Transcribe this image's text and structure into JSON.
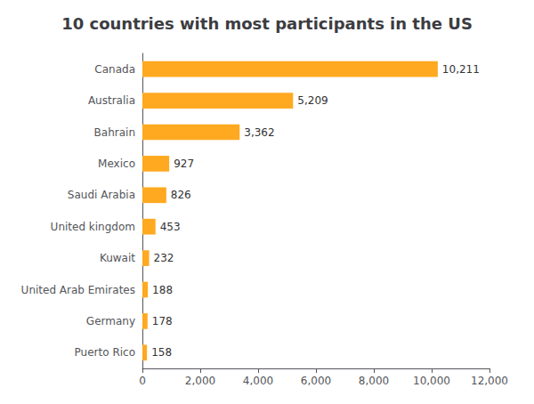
{
  "chart_data": {
    "type": "bar",
    "orientation": "horizontal",
    "title": "10 countries with most participants in the US",
    "categories": [
      "Canada",
      "Australia",
      "Bahrain",
      "Mexico",
      "Saudi Arabia",
      "United kingdom",
      "Kuwait",
      "United Arab Emirates",
      "Germany",
      "Puerto Rico"
    ],
    "values": [
      10211,
      5209,
      3362,
      927,
      826,
      453,
      232,
      188,
      178,
      158
    ],
    "value_labels": [
      "10,211",
      "5,209",
      "3,362",
      "927",
      "826",
      "453",
      "232",
      "188",
      "178",
      "158"
    ],
    "data_labels": true,
    "color": "#FFA920",
    "xlim": [
      0,
      12000
    ],
    "xticks": [
      0,
      {
        "value": 2000,
        "label": "2,000"
      },
      {
        "value": 4000,
        "label": "4,000"
      },
      {
        "value": 6000,
        "label": "6,000"
      },
      {
        "value": 8000,
        "label": "8,000"
      },
      {
        "value": 10000,
        "label": "10,000"
      },
      {
        "value": 12000,
        "label": "12,000"
      }
    ],
    "grid": false
  }
}
